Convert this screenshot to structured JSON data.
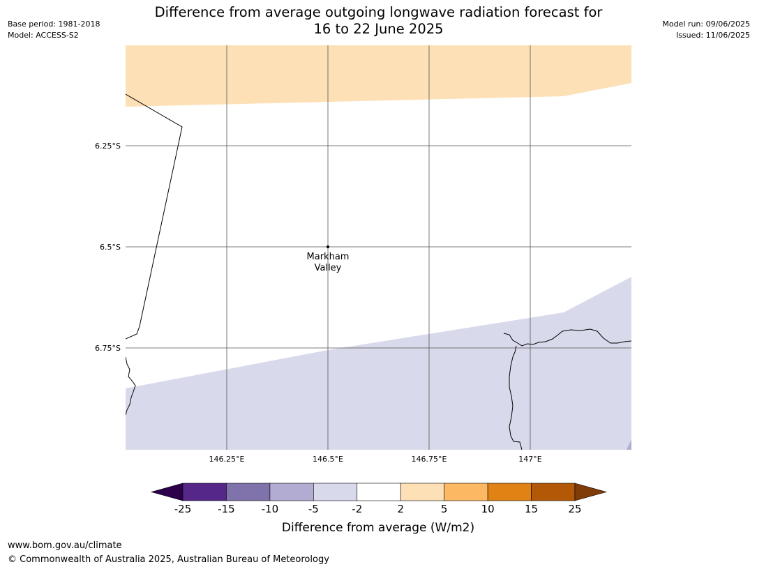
{
  "header": {
    "title_line1": "Difference from average outgoing longwave radiation forecast for",
    "title_line2": "16 to 22 June 2025",
    "base_period": "Base period: 1981-2018",
    "model": "Model: ACCESS-S2",
    "model_run": "Model run: 09/06/2025",
    "issued": "Issued: 11/06/2025"
  },
  "map": {
    "lat_labels": [
      "6.25°S",
      "6.5°S",
      "6.75°S"
    ],
    "lon_labels": [
      "146.25°E",
      "146.5°E",
      "146.75°E",
      "147°E"
    ],
    "place": {
      "name_line1": "Markham",
      "name_line2": "Valley"
    },
    "colors": {
      "positive_2_5": "#fde0b6",
      "negative_2_5": "#d8d9ea",
      "negative_5_10": "#b2abd2"
    }
  },
  "colorbar": {
    "ticks": [
      "-25",
      "-15",
      "-10",
      "-5",
      "-2",
      "2",
      "5",
      "10",
      "15",
      "25"
    ],
    "colors": [
      "#2d004b",
      "#542788",
      "#8073ac",
      "#b2abd2",
      "#d8daeb",
      "#ffffff",
      "#fee0b6",
      "#fdb863",
      "#e08214",
      "#b35806",
      "#7f3b08"
    ],
    "label": "Difference from average (W/m2)"
  },
  "footer": {
    "url": "www.bom.gov.au/climate",
    "copyright": "© Commonwealth of Australia 2025, Australian Bureau of Meteorology"
  }
}
